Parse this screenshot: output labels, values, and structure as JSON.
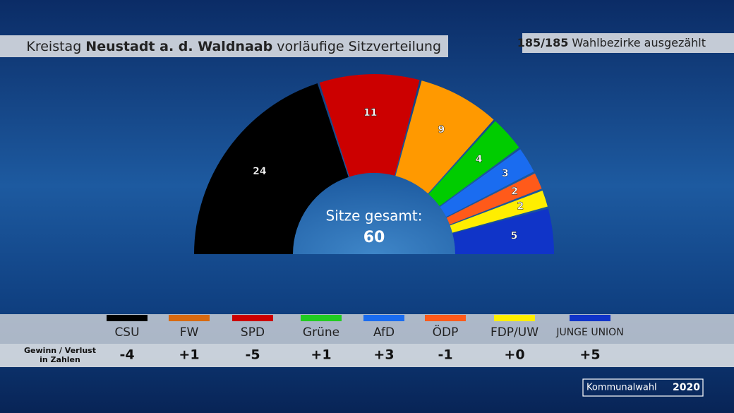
{
  "chart_data": {
    "type": "semicircle",
    "title": {
      "prefix": "Kreistag",
      "region": "Neustadt a. d. Waldnaab",
      "suffix": "vorläufige Sitzverteilung"
    },
    "count": {
      "progress": "185/185",
      "label": "Wahlbezirke ausgezählt"
    },
    "categories": [
      "CSU",
      "SPD",
      "FW",
      "Grüne",
      "AfD",
      "ÖDP",
      "FDP/UW",
      "JUNGE UNION"
    ],
    "values": [
      24,
      11,
      9,
      4,
      3,
      2,
      2,
      5
    ],
    "colors": [
      "#000000",
      "#cc0000",
      "#ff9900",
      "#00cc00",
      "#1a6cf0",
      "#ff5a1a",
      "#ffee00",
      "#1034c8"
    ],
    "total_label": "Sitze gesamt:",
    "total": 60,
    "changes": {
      "title": [
        "Gewinn / Verlust",
        "in Zahlen"
      ],
      "names": [
        "CSU",
        "FW",
        "SPD",
        "Grüne",
        "AfD",
        "ÖDP",
        "FDP/UW",
        "JUNGE UNION"
      ],
      "colors": [
        "#000000",
        "#d86a10",
        "#cc0000",
        "#22cc22",
        "#1a6cf0",
        "#ff5a1a",
        "#ffee00",
        "#1034c8"
      ],
      "values": [
        -4,
        1,
        -5,
        1,
        3,
        -1,
        0,
        5
      ],
      "value_labels": [
        "-4",
        "+1",
        "-5",
        "+1",
        "+3",
        "-1",
        "+0",
        "+5"
      ]
    },
    "badge": {
      "label": "Kommunalwahl",
      "year": "2020"
    }
  }
}
